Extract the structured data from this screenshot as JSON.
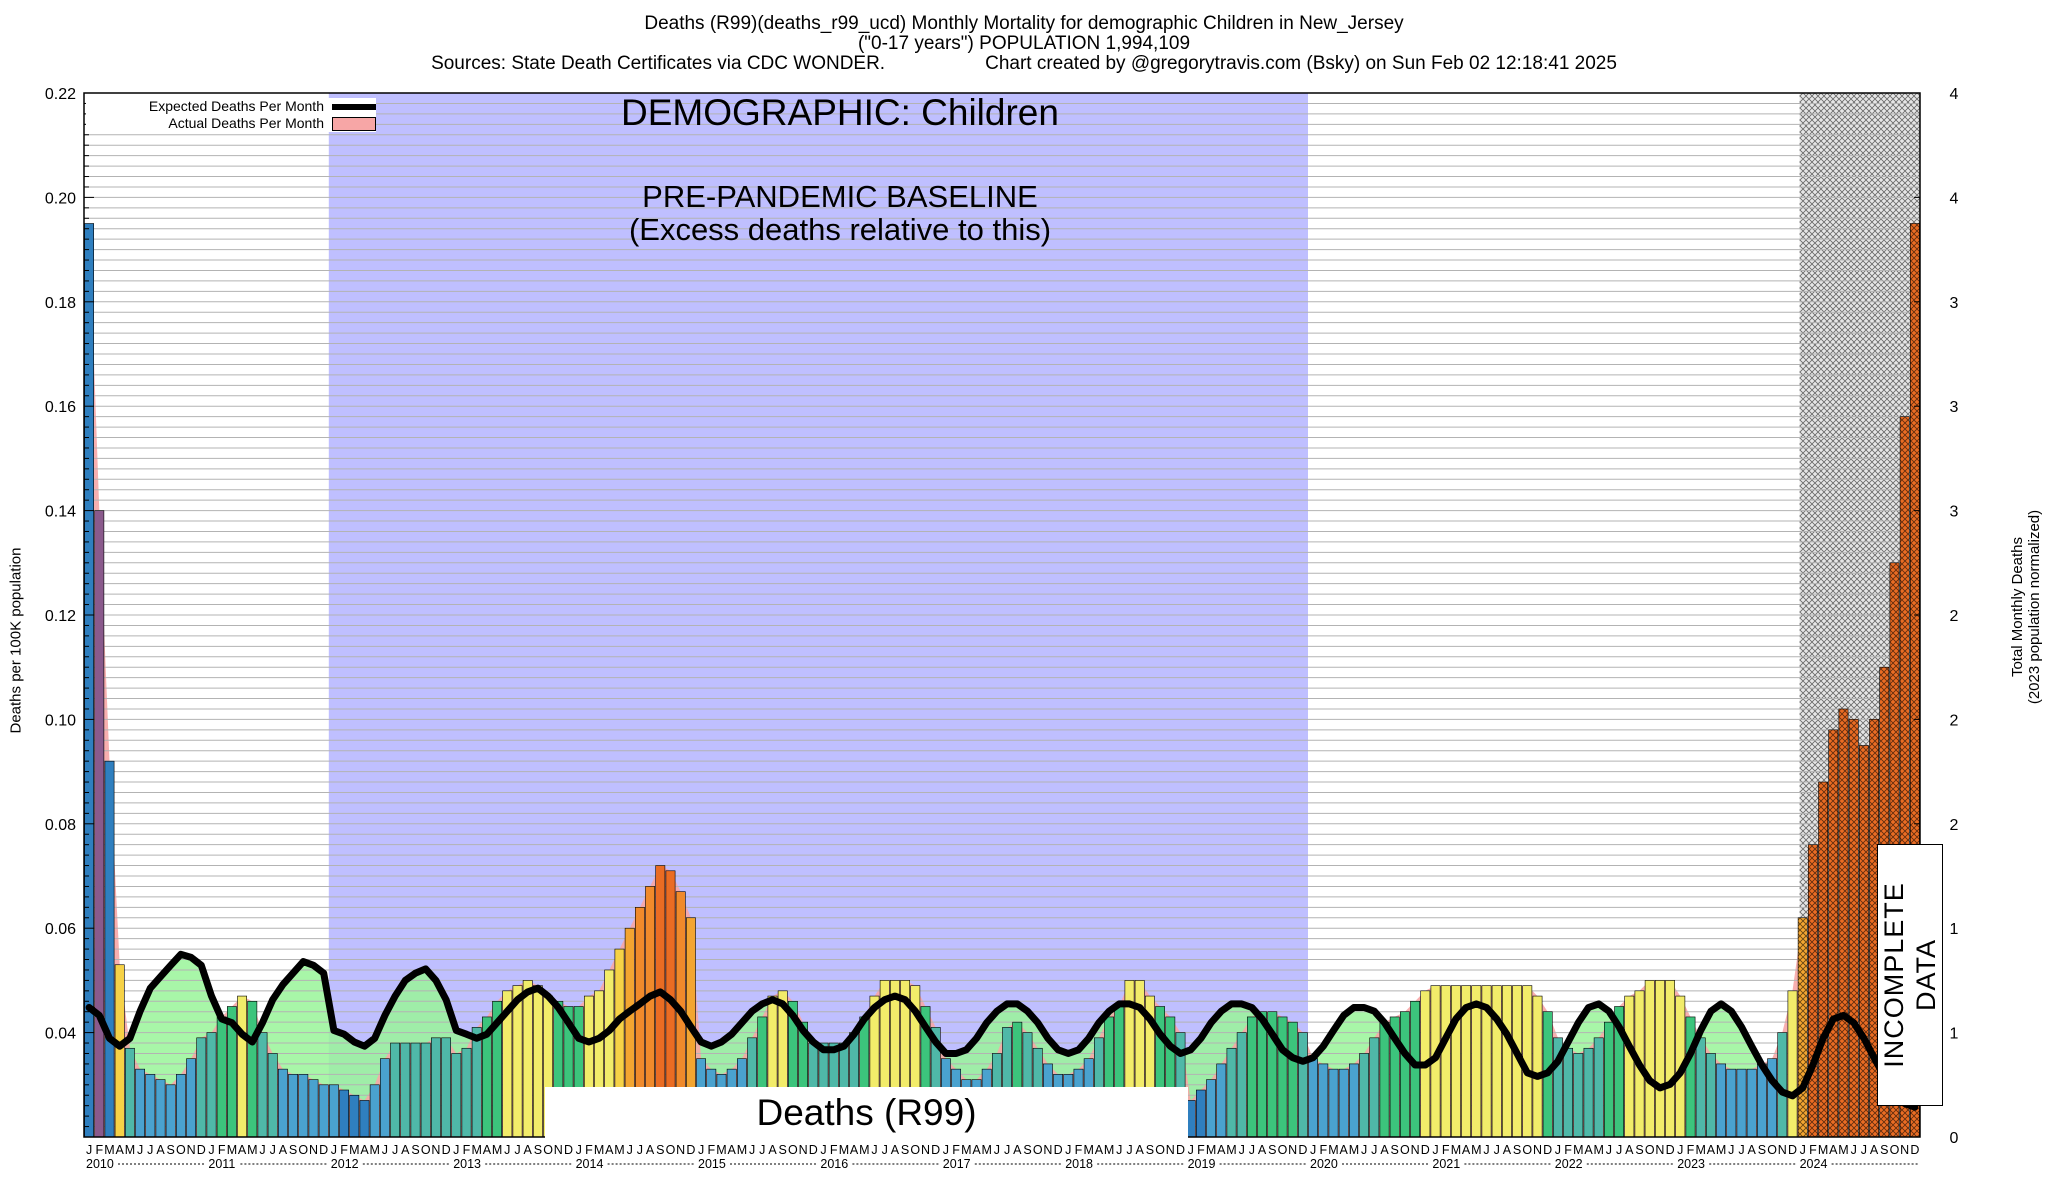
{
  "titles": {
    "line1": "Deaths (R99)(deaths_r99_ucd) Monthly Mortality for demographic Children in New_Jersey",
    "line2": "(\"0-17 years\") POPULATION 1,994,109",
    "source": "Sources: State Death Certificates via CDC WONDER.",
    "credit": "Chart created by @gregorytravis.com (Bsky) on Sun Feb 02 12:18:41 2025"
  },
  "annotations": {
    "demographic": "DEMOGRAPHIC: Children",
    "baseline_line1": "PRE-PANDEMIC BASELINE",
    "baseline_line2": "(Excess deaths relative to this)",
    "series_label": "Deaths (R99)",
    "incomplete": "INCOMPLETE DATA"
  },
  "colors": {
    "baseline_region": "#bfbfff",
    "expected_line": "#000000",
    "actual_fill": "#f7a6a6",
    "band_fill": "#99f599"
  },
  "chart_data": {
    "type": "bar",
    "title": "Deaths (R99)(deaths_r99_ucd) Monthly Mortality for demographic Children in New_Jersey",
    "ylabel": "Deaths per 100K population",
    "ylabel_right_line1": "Total Monthly Deaths",
    "ylabel_right_line2": "(2023 population normalized)",
    "ylim": [
      0.02,
      0.22
    ],
    "yticks": [
      "0.04",
      "0.06",
      "0.08",
      "0.10",
      "0.12",
      "0.14",
      "0.16",
      "0.18",
      "0.20",
      "0.22"
    ],
    "yticks_right": [
      "0",
      "1",
      "1",
      "2",
      "2",
      "2",
      "3",
      "3",
      "3",
      "4",
      "4"
    ],
    "grid": true,
    "legend_position": "top-left",
    "legend": [
      "Expected Deaths Per Month",
      "Actual Deaths Per Month"
    ],
    "month_letters": [
      "J",
      "F",
      "M",
      "A",
      "M",
      "J",
      "J",
      "A",
      "S",
      "O",
      "N",
      "D"
    ],
    "years": [
      "2010",
      "2011",
      "2012",
      "2013",
      "2014",
      "2015",
      "2016",
      "2017",
      "2018",
      "2019",
      "2020",
      "2021",
      "2022",
      "2023",
      "2024"
    ],
    "baseline_range": [
      "2012-01",
      "2019-12"
    ],
    "incomplete_from": "2024-01",
    "series": [
      {
        "name": "Actual Deaths Per Month",
        "values": [
          0.195,
          0.14,
          0.092,
          0.053,
          0.037,
          0.033,
          0.032,
          0.031,
          0.03,
          0.032,
          0.035,
          0.039,
          0.04,
          0.043,
          0.045,
          0.047,
          0.046,
          0.04,
          0.036,
          0.033,
          0.032,
          0.032,
          0.031,
          0.03,
          0.03,
          0.029,
          0.028,
          0.027,
          0.03,
          0.035,
          0.038,
          0.038,
          0.038,
          0.038,
          0.039,
          0.039,
          0.036,
          0.037,
          0.041,
          0.043,
          0.046,
          0.048,
          0.049,
          0.05,
          0.049,
          0.047,
          0.046,
          0.045,
          0.045,
          0.047,
          0.048,
          0.052,
          0.056,
          0.06,
          0.064,
          0.068,
          0.072,
          0.071,
          0.067,
          0.062,
          0.035,
          0.033,
          0.032,
          0.033,
          0.035,
          0.039,
          0.043,
          0.047,
          0.048,
          0.046,
          0.042,
          0.038,
          0.038,
          0.038,
          0.038,
          0.04,
          0.043,
          0.047,
          0.05,
          0.05,
          0.05,
          0.049,
          0.045,
          0.041,
          0.035,
          0.033,
          0.031,
          0.031,
          0.033,
          0.036,
          0.041,
          0.042,
          0.04,
          0.037,
          0.034,
          0.032,
          0.032,
          0.033,
          0.035,
          0.039,
          0.043,
          0.045,
          0.05,
          0.05,
          0.047,
          0.045,
          0.043,
          0.04,
          0.027,
          0.029,
          0.031,
          0.034,
          0.037,
          0.04,
          0.043,
          0.044,
          0.044,
          0.043,
          0.042,
          0.04,
          0.035,
          0.034,
          0.033,
          0.033,
          0.034,
          0.036,
          0.039,
          0.042,
          0.043,
          0.044,
          0.046,
          0.048,
          0.049,
          0.049,
          0.049,
          0.049,
          0.049,
          0.049,
          0.049,
          0.049,
          0.049,
          0.049,
          0.047,
          0.044,
          0.039,
          0.037,
          0.036,
          0.037,
          0.039,
          0.042,
          0.045,
          0.047,
          0.048,
          0.05,
          0.05,
          0.05,
          0.047,
          0.043,
          0.039,
          0.036,
          0.034,
          0.033,
          0.033,
          0.033,
          0.034,
          0.035,
          0.04,
          0.048,
          0.062,
          0.076,
          0.088,
          0.098,
          0.102,
          0.1,
          0.095,
          0.1,
          0.11,
          0.13,
          0.158,
          0.195
        ]
      },
      {
        "name": "Expected Deaths Per Month",
        "values": [
          0.0448,
          0.0433,
          0.0389,
          0.0374,
          0.0389,
          0.0441,
          0.0485,
          0.0507,
          0.0529,
          0.055,
          0.0544,
          0.0529,
          0.047,
          0.0426,
          0.0419,
          0.0397,
          0.0382,
          0.0419,
          0.0463,
          0.0492,
          0.0514,
          0.0536,
          0.0529,
          0.0514,
          0.0404,
          0.0397,
          0.0382,
          0.0374,
          0.0389,
          0.0433,
          0.047,
          0.05,
          0.0514,
          0.0522,
          0.05,
          0.0463,
          0.0404,
          0.0397,
          0.0389,
          0.0397,
          0.0419,
          0.0441,
          0.0463,
          0.0478,
          0.0485,
          0.047,
          0.0448,
          0.0419,
          0.0389,
          0.0382,
          0.0389,
          0.0404,
          0.0426,
          0.0441,
          0.0455,
          0.047,
          0.0478,
          0.0463,
          0.0441,
          0.0411,
          0.0382,
          0.0374,
          0.0382,
          0.0397,
          0.0419,
          0.0441,
          0.0455,
          0.0463,
          0.0455,
          0.0433,
          0.0404,
          0.0382,
          0.0367,
          0.0367,
          0.0374,
          0.0397,
          0.0426,
          0.0448,
          0.0463,
          0.047,
          0.0463,
          0.0441,
          0.0411,
          0.0382,
          0.036,
          0.036,
          0.0367,
          0.0389,
          0.0419,
          0.0441,
          0.0455,
          0.0455,
          0.0441,
          0.0419,
          0.0389,
          0.0367,
          0.036,
          0.0367,
          0.0389,
          0.0419,
          0.0441,
          0.0455,
          0.0455,
          0.0448,
          0.0426,
          0.0397,
          0.0374,
          0.036,
          0.0367,
          0.0389,
          0.0419,
          0.0441,
          0.0455,
          0.0455,
          0.0448,
          0.0426,
          0.0397,
          0.0367,
          0.0352,
          0.0345,
          0.0352,
          0.0374,
          0.0404,
          0.0433,
          0.0448,
          0.0448,
          0.0441,
          0.0419,
          0.0389,
          0.036,
          0.0338,
          0.0338,
          0.0352,
          0.0389,
          0.0426,
          0.0448,
          0.0455,
          0.0448,
          0.0426,
          0.0397,
          0.036,
          0.0323,
          0.0316,
          0.0323,
          0.0345,
          0.0382,
          0.0419,
          0.0448,
          0.0455,
          0.0441,
          0.0411,
          0.0374,
          0.0338,
          0.0308,
          0.0294,
          0.0301,
          0.0323,
          0.036,
          0.0404,
          0.0441,
          0.0455,
          0.0441,
          0.0411,
          0.0374,
          0.0338,
          0.0308,
          0.0286,
          0.0279,
          0.0294,
          0.0338,
          0.0389,
          0.0426,
          0.0433,
          0.0419,
          0.0389,
          0.0352,
          0.0316,
          0.0286,
          0.0264,
          0.0257
        ]
      }
    ]
  }
}
